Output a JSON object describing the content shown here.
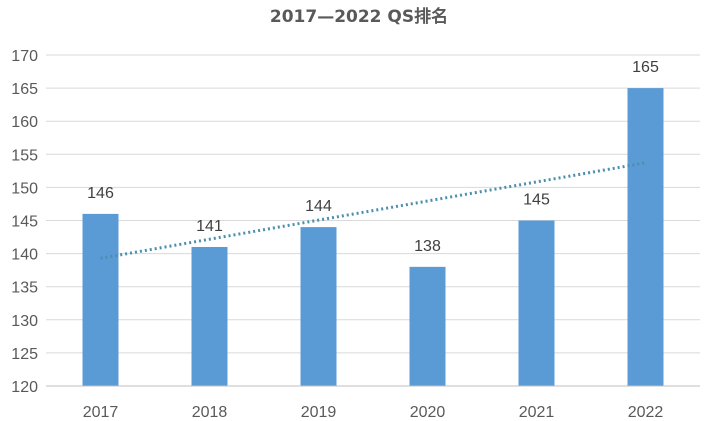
{
  "chart_data": {
    "type": "bar",
    "title": "2017—2022 QS排名",
    "xlabel": "",
    "ylabel": "",
    "categories": [
      "2017",
      "2018",
      "2019",
      "2020",
      "2021",
      "2022"
    ],
    "values": [
      146,
      141,
      144,
      138,
      145,
      165
    ],
    "data_labels": [
      "146",
      "141",
      "144",
      "138",
      "145",
      "165"
    ],
    "ylim": [
      120,
      170
    ],
    "yticks": [
      120,
      125,
      130,
      135,
      140,
      145,
      150,
      155,
      160,
      165,
      170
    ],
    "ytick_labels": [
      "120",
      "125",
      "130",
      "135",
      "140",
      "145",
      "150",
      "155",
      "160",
      "165",
      "170"
    ],
    "grid": true,
    "legend": "none",
    "trendline": {
      "type": "linear",
      "style": "dotted"
    },
    "colors": {
      "bar": "#5b9bd5",
      "trendline": "#4a8fb0"
    }
  }
}
